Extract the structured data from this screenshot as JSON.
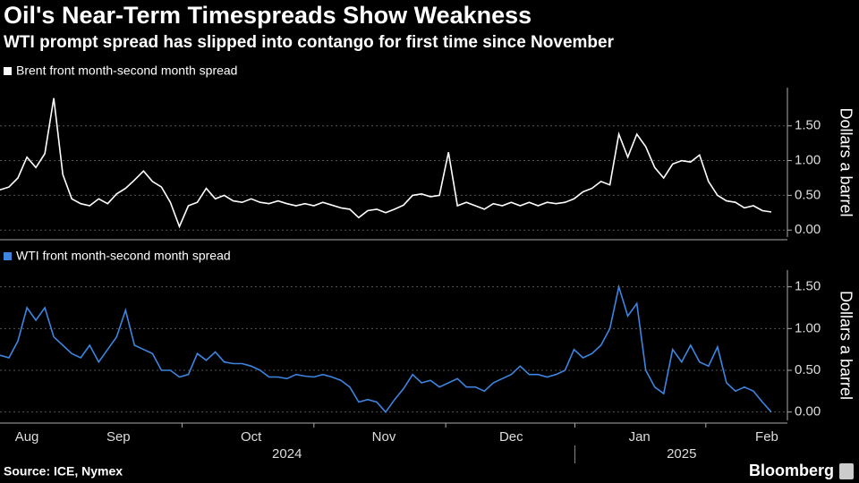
{
  "title": "Oil's Near-Term Timespreads Show Weakness",
  "subtitle": "WTI prompt spread has slipped into contango for first time since November",
  "source": "Source: ICE, Nymex",
  "brand": "Bloomberg",
  "chart_data": [
    {
      "type": "line",
      "ylabel": "Dollars a barrel",
      "series": [
        {
          "name": "Brent front month-second month spread",
          "color": "#ffffff",
          "values": [
            0.58,
            0.62,
            0.75,
            1.05,
            0.9,
            1.1,
            1.9,
            0.8,
            0.45,
            0.38,
            0.35,
            0.45,
            0.38,
            0.52,
            0.6,
            0.72,
            0.85,
            0.7,
            0.62,
            0.4,
            0.05,
            0.35,
            0.4,
            0.6,
            0.45,
            0.5,
            0.42,
            0.4,
            0.45,
            0.4,
            0.38,
            0.42,
            0.38,
            0.35,
            0.38,
            0.35,
            0.4,
            0.36,
            0.32,
            0.3,
            0.18,
            0.28,
            0.3,
            0.25,
            0.3,
            0.36,
            0.5,
            0.52,
            0.48,
            0.5,
            1.12,
            0.35,
            0.4,
            0.35,
            0.3,
            0.38,
            0.35,
            0.4,
            0.35,
            0.4,
            0.35,
            0.4,
            0.38,
            0.4,
            0.45,
            0.55,
            0.6,
            0.7,
            0.65,
            1.38,
            1.05,
            1.38,
            1.2,
            0.9,
            0.75,
            0.95,
            1.0,
            0.98,
            1.08,
            0.7,
            0.5,
            0.42,
            0.4,
            0.32,
            0.35,
            0.28,
            0.26
          ]
        }
      ],
      "xlim": [
        0,
        86
      ],
      "ylim": [
        -0.1,
        2.05
      ],
      "yticks": [
        {
          "value": 0,
          "label": "0.00"
        },
        {
          "value": 0.5,
          "label": "0.50"
        },
        {
          "value": 1,
          "label": "1.00"
        },
        {
          "value": 1.5,
          "label": "1.50"
        }
      ],
      "grid": true
    },
    {
      "type": "line",
      "ylabel": "Dollars a barrel",
      "series": [
        {
          "name": "WTI front month-second month spread",
          "color": "#3d85e0",
          "values": [
            0.68,
            0.65,
            0.85,
            1.25,
            1.1,
            1.25,
            0.9,
            0.8,
            0.7,
            0.65,
            0.8,
            0.6,
            0.75,
            0.9,
            1.22,
            0.8,
            0.75,
            0.7,
            0.5,
            0.5,
            0.42,
            0.45,
            0.7,
            0.62,
            0.72,
            0.6,
            0.58,
            0.58,
            0.55,
            0.5,
            0.42,
            0.42,
            0.4,
            0.45,
            0.43,
            0.42,
            0.45,
            0.42,
            0.38,
            0.3,
            0.12,
            0.15,
            0.12,
            0.0,
            0.15,
            0.28,
            0.45,
            0.35,
            0.38,
            0.3,
            0.35,
            0.4,
            0.3,
            0.3,
            0.25,
            0.35,
            0.4,
            0.45,
            0.55,
            0.45,
            0.45,
            0.42,
            0.45,
            0.5,
            0.75,
            0.65,
            0.7,
            0.8,
            1.0,
            1.5,
            1.15,
            1.3,
            0.5,
            0.3,
            0.22,
            0.75,
            0.6,
            0.8,
            0.6,
            0.55,
            0.78,
            0.35,
            0.25,
            0.3,
            0.25,
            0.12,
            0.0
          ]
        }
      ],
      "xlim": [
        0,
        86
      ],
      "ylim": [
        -0.1,
        1.7
      ],
      "yticks": [
        {
          "value": 0,
          "label": "0.00"
        },
        {
          "value": 0.5,
          "label": "0.50"
        },
        {
          "value": 1,
          "label": "1.00"
        },
        {
          "value": 1.5,
          "label": "1.50"
        }
      ],
      "xticks": [
        {
          "value": 3,
          "label": "Aug"
        },
        {
          "value": 13.2,
          "label": "Sep"
        },
        {
          "value": 28,
          "label": "Oct"
        },
        {
          "value": 42.8,
          "label": "Nov"
        },
        {
          "value": 57,
          "label": "Dec"
        },
        {
          "value": 71.3,
          "label": "Jan"
        },
        {
          "value": 85.5,
          "label": "Feb"
        }
      ],
      "xminor": [
        20.3,
        35,
        49.7,
        64.1,
        78.7
      ],
      "year_labels": [
        {
          "value": 32,
          "label": "2024"
        },
        {
          "value": 76,
          "label": "2025"
        }
      ],
      "grid": true
    }
  ]
}
